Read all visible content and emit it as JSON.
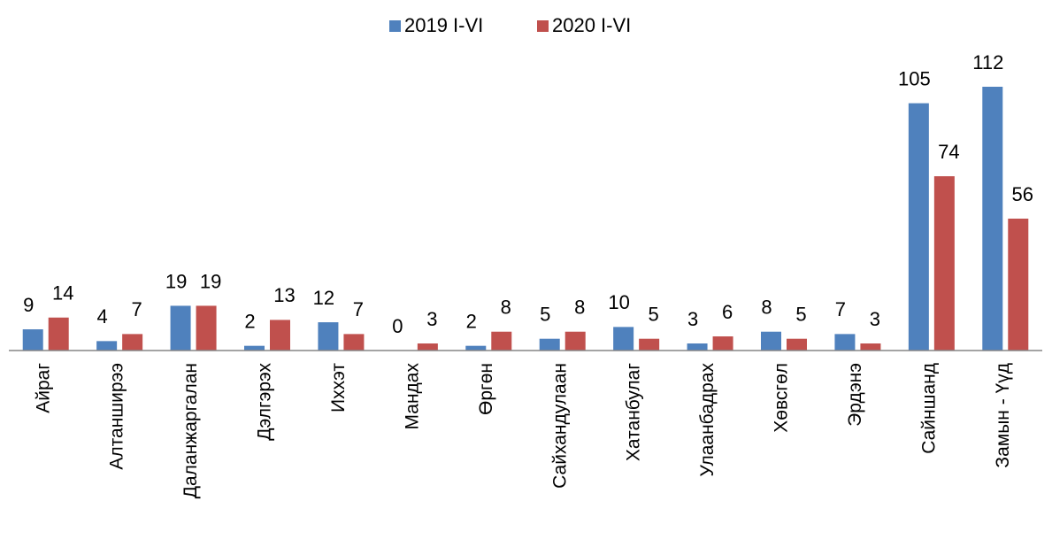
{
  "chart_data": {
    "type": "bar",
    "categories": [
      "Айраг",
      "Алтанширээ",
      "Даланжаргалан",
      "Дэлгэрэх",
      "Иххэт",
      "Мандах",
      "Өргөн",
      "Сайхандулаан",
      "Хатанбулаг",
      "Улаанбадрах",
      "Хөвсгөл",
      "Эрдэнэ",
      "Сайншанд",
      "Замын - Үүд"
    ],
    "series": [
      {
        "name": "2019 I-VI",
        "color": "#4f81bd",
        "values": [
          9,
          4,
          19,
          2,
          12,
          0,
          2,
          5,
          10,
          3,
          8,
          7,
          105,
          112
        ]
      },
      {
        "name": "2020 I-VI",
        "color": "#c0504d",
        "values": [
          14,
          7,
          19,
          13,
          7,
          3,
          8,
          8,
          5,
          6,
          5,
          3,
          74,
          56
        ]
      }
    ],
    "legend": "top"
  }
}
